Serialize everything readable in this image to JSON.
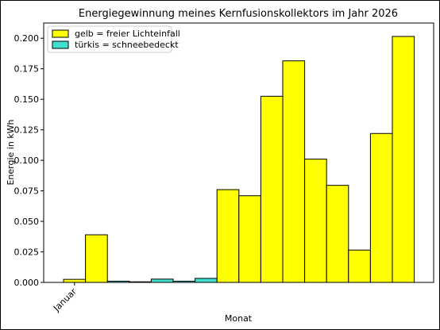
{
  "chart_data": {
    "type": "bar",
    "title": "Energiegewinnung meines Kernfusionskollektors im Jahr 2026",
    "xlabel": "Monat",
    "ylabel": "Energie in kWh",
    "ylim": [
      0,
      0.2125
    ],
    "yticks": [
      "0.000",
      "0.025",
      "0.050",
      "0.075",
      "0.100",
      "0.125",
      "0.150",
      "0.175",
      "0.200"
    ],
    "x_tick_labels": [
      "Januar"
    ],
    "legend": {
      "placement": "top-left",
      "entries": [
        {
          "label": "gelb = freier Lichteinfall",
          "color": "#ffff00"
        },
        {
          "label": "türkis = schneebedeckt",
          "color": "#40e0d0"
        }
      ]
    },
    "colors": {
      "yellow": "#ffff00",
      "turquoise": "#40e0d0",
      "edge": "#000000"
    },
    "values": [
      0.0025,
      0.039,
      0.001,
      0.0005,
      0.0027,
      0.001,
      0.0033,
      0.076,
      0.071,
      0.1525,
      0.1815,
      0.101,
      0.0795,
      0.0265,
      0.122,
      0.2015
    ],
    "bar_colors": [
      "yellow",
      "yellow",
      "turquoise",
      "turquoise",
      "turquoise",
      "turquoise",
      "turquoise",
      "yellow",
      "yellow",
      "yellow",
      "yellow",
      "yellow",
      "yellow",
      "yellow",
      "yellow",
      "yellow"
    ]
  }
}
